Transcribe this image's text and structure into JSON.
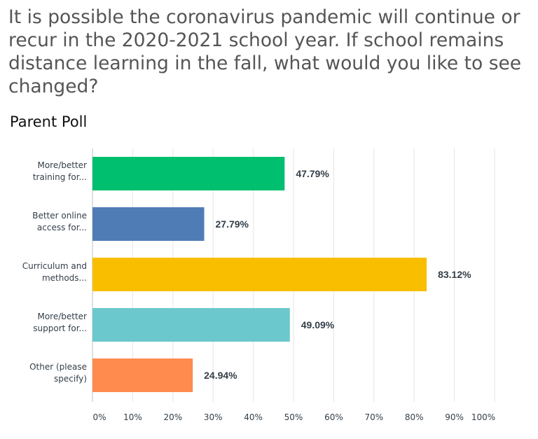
{
  "header": {
    "question": "It is possible the coronavirus pandemic will continue or recur in the 2020-2021 school year. If school remains distance learning in the fall, what would you like to see changed?",
    "subtitle": "Parent Poll"
  },
  "chart_data": {
    "type": "bar",
    "orientation": "horizontal",
    "categories": [
      [
        "More/better",
        "training for..."
      ],
      [
        "Better online",
        "access for..."
      ],
      [
        "Curriculum and",
        "methods..."
      ],
      [
        "More/better",
        "support for..."
      ],
      [
        "Other (please",
        "specify)"
      ]
    ],
    "values": [
      47.79,
      27.79,
      83.12,
      49.09,
      24.94
    ],
    "value_labels": [
      "47.79%",
      "27.79%",
      "83.12%",
      "49.09%",
      "24.94%"
    ],
    "colors": [
      "#00bf6f",
      "#507cb6",
      "#f9be00",
      "#6bc8cd",
      "#ff8b4f"
    ],
    "xlim": [
      0,
      100
    ],
    "x_ticks": [
      "0%",
      "10%",
      "20%",
      "30%",
      "40%",
      "50%",
      "60%",
      "70%",
      "80%",
      "90%",
      "100%"
    ],
    "grid": true,
    "gridline_color": "#e5e5e5"
  }
}
